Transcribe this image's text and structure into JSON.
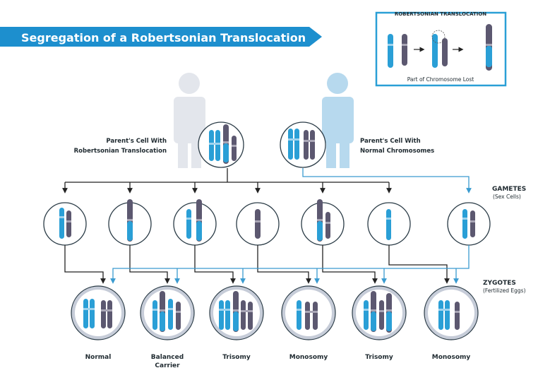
{
  "title": "Segregation of a Robertsonian Translocation",
  "inset": {
    "title": "ROBERTSONIAN TRANSLOCATION",
    "caption": "Part of Chromosome Lost"
  },
  "parents": {
    "carrier_label_1": "Parent's Cell With",
    "carrier_label_2": "Robertsonian Translocation",
    "normal_label_1": "Parent's Cell With",
    "normal_label_2": "Normal Chromosomes"
  },
  "gametes": {
    "label": "GAMETES",
    "sublabel": "(Sex Cells)"
  },
  "zygotes_section": {
    "label": "ZYGOTES",
    "sublabel": "(Fertilized Eggs)"
  },
  "zygotes": [
    {
      "label_1": "Normal",
      "label_2": ""
    },
    {
      "label_1": "Balanced",
      "label_2": "Carrier"
    },
    {
      "label_1": "Trisomy",
      "label_2": ""
    },
    {
      "label_1": "Monosomy",
      "label_2": ""
    },
    {
      "label_1": "Trisomy",
      "label_2": ""
    },
    {
      "label_1": "Monosomy",
      "label_2": ""
    }
  ],
  "colors": {
    "banner": "#1d8fce",
    "blue_chromosome": "#2a9fd6",
    "purple_chromosome": "#5c5870",
    "grey_person": "#e3e6ec",
    "blue_person": "#b7d9ee",
    "black_line": "#222222",
    "blue_line": "#3a9bd0",
    "zygote_fill": "#c6ccd8"
  }
}
